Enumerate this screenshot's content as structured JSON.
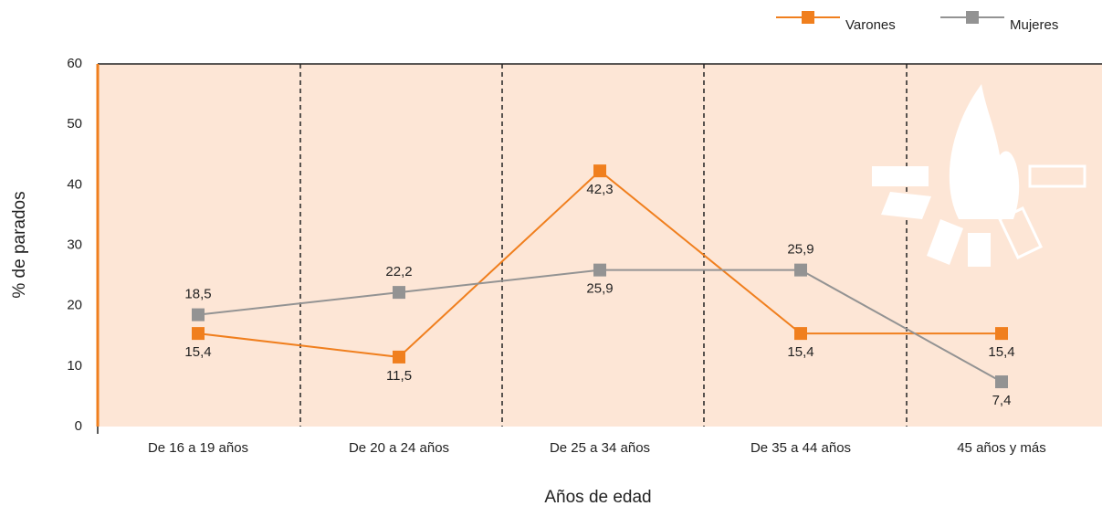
{
  "chart_data": {
    "type": "line",
    "categories": [
      "De 16 a 19 años",
      "De 20 a 24 años",
      "De 25 a 34 años",
      "De 35 a 44 años",
      "45 años y más"
    ],
    "series": [
      {
        "name": "Varones",
        "color": "#f07f1e",
        "values": [
          15.4,
          11.5,
          42.3,
          15.4,
          15.4
        ],
        "value_labels": [
          "15,4",
          "11,5",
          "42,3",
          "15,4",
          "15,4"
        ]
      },
      {
        "name": "Mujeres",
        "color": "#939393",
        "values": [
          18.5,
          22.2,
          25.9,
          25.9,
          7.4
        ],
        "value_labels": [
          "18,5",
          "22,2",
          "25,9",
          "25,9",
          "7,4"
        ]
      }
    ],
    "x_label": "Años de edad",
    "y_label": "% de parados",
    "ylim": [
      0,
      60
    ],
    "yticks": [
      0,
      10,
      20,
      30,
      40,
      50,
      60
    ],
    "grid": false,
    "legend": "top-right"
  }
}
